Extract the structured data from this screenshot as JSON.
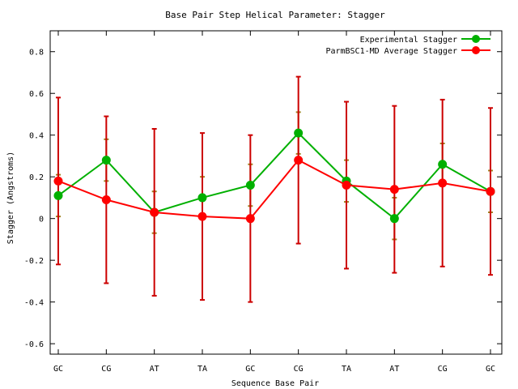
{
  "chart_data": {
    "type": "line",
    "title": "Base Pair Step Helical Parameter: Stagger",
    "xlabel": "Sequence Base Pair",
    "ylabel": "Stagger (Angstroms)",
    "categories": [
      "GC",
      "CG",
      "AT",
      "TA",
      "GC",
      "CG",
      "TA",
      "AT",
      "CG",
      "GC"
    ],
    "ylim": [
      -0.65,
      0.9
    ],
    "yticks": [
      -0.6,
      -0.4,
      -0.2,
      0,
      0.2,
      0.4,
      0.6,
      0.8
    ],
    "ytick_labels": [
      "-0.6",
      "-0.4",
      "-0.2",
      "0",
      "0.2",
      "0.4",
      "0.6",
      "0.8"
    ],
    "legend_position": "top-right",
    "grid": false,
    "series": [
      {
        "name": "Experimental Stagger",
        "color": "#00b000",
        "values": [
          0.11,
          0.28,
          0.03,
          0.1,
          0.16,
          0.41,
          0.18,
          0.0,
          0.26,
          0.13
        ],
        "error": [
          0.1,
          0.1,
          0.1,
          0.1,
          0.1,
          0.1,
          0.1,
          0.1,
          0.1,
          0.1
        ],
        "error_color": "#a08020"
      },
      {
        "name": "ParmBSC1-MD Average Stagger",
        "color": "#ff0000",
        "values": [
          0.18,
          0.09,
          0.03,
          0.01,
          0.0,
          0.28,
          0.16,
          0.14,
          0.17,
          0.13
        ],
        "error": [
          0.4,
          0.4,
          0.4,
          0.4,
          0.4,
          0.4,
          0.4,
          0.4,
          0.4,
          0.4
        ],
        "error_color": "#cc0000"
      }
    ]
  }
}
